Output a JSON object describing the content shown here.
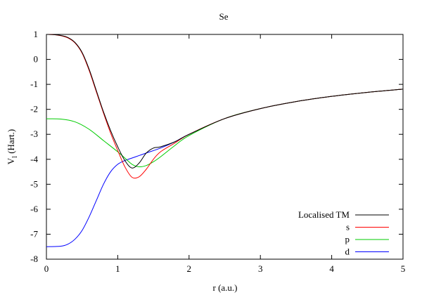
{
  "chart_data": {
    "type": "line",
    "title": "Se",
    "xlabel": "r (a.u.)",
    "ylabel": {
      "main": "V",
      "sub": "l",
      "rest": " (Hart.)"
    },
    "xlim": [
      0,
      5
    ],
    "ylim": [
      -8,
      1
    ],
    "xticks": [
      0,
      1,
      2,
      3,
      4,
      5
    ],
    "yticks": [
      1,
      0,
      -1,
      -2,
      -3,
      -4,
      -5,
      -6,
      -7,
      -8
    ],
    "xtick_labels": [
      "0",
      "1",
      "2",
      "3",
      "4",
      "5"
    ],
    "ytick_labels": [
      "1",
      "0",
      "-1",
      "-2",
      "-3",
      "-4",
      "-5",
      "-6",
      "-7",
      "-8"
    ],
    "legend_position": "bottom-right",
    "series": [
      {
        "name": "Localised TM",
        "color": "#000000",
        "points": [
          [
            0,
            1.0
          ],
          [
            0.1,
            0.99
          ],
          [
            0.2,
            0.96
          ],
          [
            0.3,
            0.88
          ],
          [
            0.4,
            0.68
          ],
          [
            0.5,
            0.28
          ],
          [
            0.6,
            -0.4
          ],
          [
            0.7,
            -1.25
          ],
          [
            0.8,
            -2.1
          ],
          [
            0.9,
            -2.85
          ],
          [
            1.0,
            -3.5
          ],
          [
            1.1,
            -4.05
          ],
          [
            1.2,
            -4.35
          ],
          [
            1.3,
            -4.15
          ],
          [
            1.4,
            -3.75
          ],
          [
            1.5,
            -3.55
          ],
          [
            1.6,
            -3.5
          ],
          [
            1.8,
            -3.3
          ],
          [
            2.0,
            -3.0
          ],
          [
            2.5,
            -2.37
          ],
          [
            3.0,
            -1.97
          ],
          [
            3.5,
            -1.69
          ],
          [
            4.0,
            -1.48
          ],
          [
            4.5,
            -1.32
          ],
          [
            5.0,
            -1.19
          ]
        ]
      },
      {
        "name": "s",
        "color": "#ff0000",
        "points": [
          [
            0,
            1.0
          ],
          [
            0.1,
            0.99
          ],
          [
            0.2,
            0.95
          ],
          [
            0.3,
            0.86
          ],
          [
            0.4,
            0.66
          ],
          [
            0.5,
            0.25
          ],
          [
            0.6,
            -0.45
          ],
          [
            0.7,
            -1.3
          ],
          [
            0.8,
            -2.15
          ],
          [
            0.9,
            -2.95
          ],
          [
            1.0,
            -3.65
          ],
          [
            1.1,
            -4.3
          ],
          [
            1.2,
            -4.72
          ],
          [
            1.3,
            -4.7
          ],
          [
            1.4,
            -4.4
          ],
          [
            1.5,
            -4.0
          ],
          [
            1.6,
            -3.7
          ],
          [
            1.8,
            -3.35
          ],
          [
            2.0,
            -3.0
          ],
          [
            2.5,
            -2.37
          ],
          [
            3.0,
            -1.97
          ],
          [
            3.5,
            -1.69
          ],
          [
            4.0,
            -1.48
          ],
          [
            4.5,
            -1.32
          ],
          [
            5.0,
            -1.19
          ]
        ]
      },
      {
        "name": "p",
        "color": "#00cc00",
        "points": [
          [
            0,
            -2.38
          ],
          [
            0.2,
            -2.39
          ],
          [
            0.4,
            -2.5
          ],
          [
            0.6,
            -2.8
          ],
          [
            0.8,
            -3.25
          ],
          [
            1.0,
            -3.7
          ],
          [
            1.1,
            -3.95
          ],
          [
            1.2,
            -4.2
          ],
          [
            1.3,
            -4.3
          ],
          [
            1.4,
            -4.25
          ],
          [
            1.5,
            -4.1
          ],
          [
            1.6,
            -3.9
          ],
          [
            1.8,
            -3.45
          ],
          [
            2.0,
            -3.05
          ],
          [
            2.5,
            -2.37
          ],
          [
            3.0,
            -1.97
          ],
          [
            3.5,
            -1.69
          ],
          [
            4.0,
            -1.48
          ],
          [
            4.5,
            -1.32
          ],
          [
            5.0,
            -1.19
          ]
        ]
      },
      {
        "name": "d",
        "color": "#0000ff",
        "points": [
          [
            0,
            -7.5
          ],
          [
            0.2,
            -7.48
          ],
          [
            0.3,
            -7.4
          ],
          [
            0.4,
            -7.2
          ],
          [
            0.5,
            -6.85
          ],
          [
            0.6,
            -6.3
          ],
          [
            0.7,
            -5.65
          ],
          [
            0.8,
            -5.0
          ],
          [
            0.9,
            -4.5
          ],
          [
            1.0,
            -4.2
          ],
          [
            1.1,
            -4.05
          ],
          [
            1.2,
            -3.95
          ],
          [
            1.3,
            -3.85
          ],
          [
            1.4,
            -3.75
          ],
          [
            1.6,
            -3.55
          ],
          [
            1.8,
            -3.3
          ],
          [
            2.0,
            -3.0
          ],
          [
            2.5,
            -2.37
          ],
          [
            3.0,
            -1.97
          ],
          [
            3.5,
            -1.69
          ],
          [
            4.0,
            -1.48
          ],
          [
            4.5,
            -1.32
          ],
          [
            5.0,
            -1.19
          ]
        ]
      }
    ]
  }
}
